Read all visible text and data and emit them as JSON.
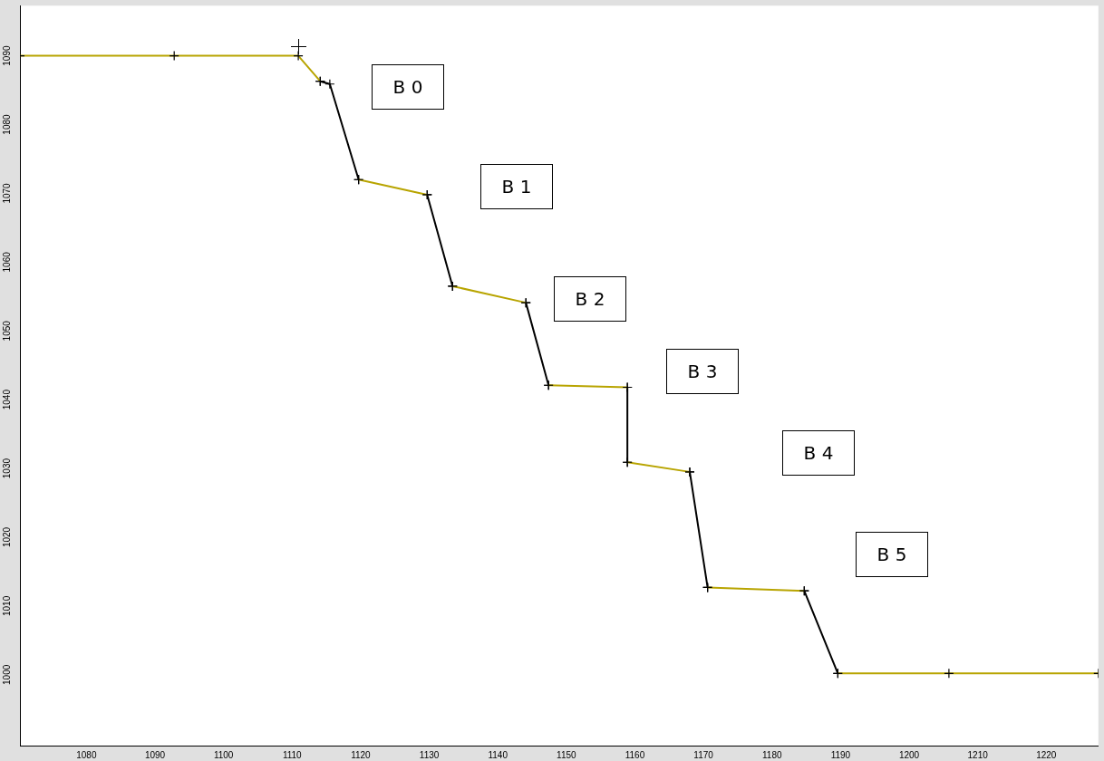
{
  "chart_data": {
    "type": "line",
    "xlim": [
      1070.3,
      1227.6
    ],
    "ylim": [
      989.7,
      1097.3
    ],
    "xticks": [
      1080,
      1090,
      1100,
      1110,
      1120,
      1130,
      1140,
      1150,
      1160,
      1170,
      1180,
      1190,
      1200,
      1210,
      1220
    ],
    "yticks": [
      1000,
      1010,
      1020,
      1030,
      1040,
      1050,
      1060,
      1070,
      1080,
      1090
    ],
    "grid": false,
    "legend": false,
    "marker": "cross",
    "line_style": "solid",
    "annotations": [
      "B 0",
      "B 1",
      "B 2",
      "B 3",
      "B 4",
      "B 5"
    ],
    "series": [
      {
        "color": "#b8a400",
        "x": [
          1070.3,
          1092.8,
          1110.9,
          1114.1,
          null,
          1119.7,
          1129.7,
          null,
          1133.4,
          1144.1,
          null,
          1147.4,
          1158.9,
          null,
          1158.9,
          1168.0,
          null,
          1170.6,
          1184.7,
          null,
          1189.6,
          1205.8,
          1227.6
        ],
        "values": [
          1090,
          1090,
          1090,
          1086.3,
          null,
          1072.0,
          1069.8,
          null,
          1056.5,
          1054.1,
          null,
          1042.1,
          1041.8,
          null,
          1030.9,
          1029.5,
          null,
          1012.7,
          1012.2,
          null,
          1000.2,
          1000.2,
          1000.2
        ]
      },
      {
        "color": "#000000",
        "x": [
          1114.1,
          1115.5,
          1119.7,
          null,
          1129.7,
          1133.4,
          null,
          1144.1,
          1147.4,
          null,
          1158.9,
          1158.9,
          null,
          1168.0,
          1170.6,
          null,
          1184.7,
          1189.6
        ],
        "values": [
          1086.3,
          1085.9,
          1072.0,
          null,
          1069.8,
          1056.5,
          null,
          1054.1,
          1042.1,
          null,
          1041.8,
          1030.9,
          null,
          1029.5,
          1012.7,
          null,
          1012.2,
          1000.2
        ]
      }
    ]
  }
}
